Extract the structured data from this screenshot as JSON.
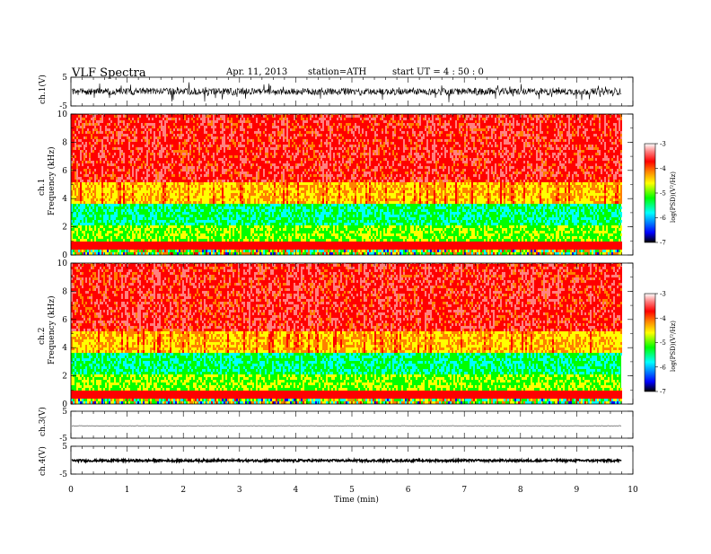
{
  "header": {
    "title": "VLF  Spectra",
    "date": "Apr. 11, 2013",
    "station": "station=ATH",
    "start": "start  UT  =   4  : 50 : 0"
  },
  "colors": {
    "spectrum": [
      "#000000",
      "#0000ff",
      "#00ffff",
      "#00ff00",
      "#ffff00",
      "#ff8000",
      "#ff0000",
      "#ff8080",
      "#ffffff"
    ],
    "trace": "#000000"
  },
  "chart_data": [
    {
      "type": "line",
      "name": "ch1-waveform",
      "ylabel": "ch.1(V)",
      "ylim": [
        -5,
        5
      ],
      "yticks": [
        "5",
        "-5"
      ],
      "xlim": [
        0,
        10
      ]
    },
    {
      "type": "heatmap",
      "name": "ch1-spectrogram",
      "ylabel_channel": "ch.1",
      "ylabel": "Frequency  (kHz)",
      "ylim": [
        0,
        10
      ],
      "yticks": [
        "0",
        "2",
        "4",
        "6",
        "8",
        "10"
      ],
      "xlim": [
        0,
        10
      ],
      "colorbar": {
        "label": "log(PSD)(V²/Hz)",
        "ticks": [
          "-3",
          "-4",
          "-5",
          "-6",
          "-7"
        ],
        "range": [
          -7,
          -3
        ]
      }
    },
    {
      "type": "heatmap",
      "name": "ch2-spectrogram",
      "ylabel_channel": "ch.2",
      "ylabel": "Frequency  (kHz)",
      "ylim": [
        0,
        10
      ],
      "yticks": [
        "0",
        "2",
        "4",
        "6",
        "8",
        "10"
      ],
      "xlim": [
        0,
        10
      ],
      "colorbar": {
        "label": "log(PSD)(V²/Hz)",
        "ticks": [
          "-3",
          "-4",
          "-5",
          "-6",
          "-7"
        ],
        "range": [
          -7,
          -3
        ]
      }
    },
    {
      "type": "line",
      "name": "ch3-waveform",
      "ylabel": "ch.3(V)",
      "ylim": [
        -5,
        5
      ],
      "yticks": [
        "5",
        "-5"
      ],
      "xlim": [
        0,
        10
      ]
    },
    {
      "type": "line",
      "name": "ch4-waveform",
      "ylabel": "ch.4(V)",
      "ylim": [
        -5,
        5
      ],
      "yticks": [
        "5",
        "-5"
      ],
      "xlim": [
        0,
        10
      ],
      "xlabel": "Time  (min)",
      "xticks": [
        "0",
        "1",
        "2",
        "3",
        "4",
        "5",
        "6",
        "7",
        "8",
        "9",
        "10"
      ]
    }
  ]
}
